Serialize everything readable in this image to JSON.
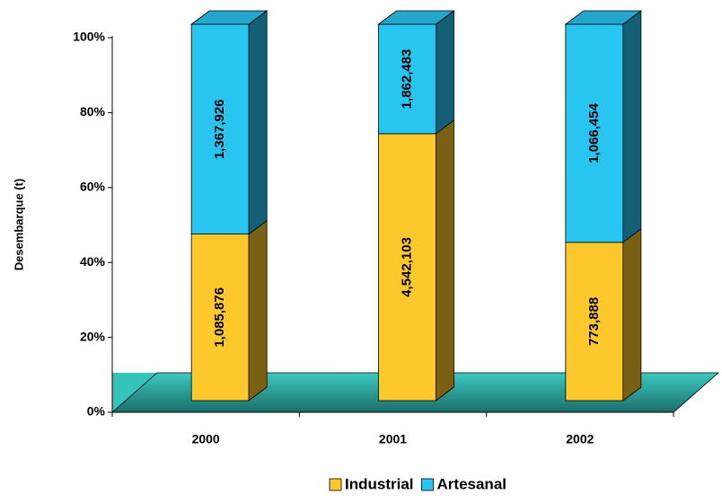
{
  "chart_data": {
    "type": "bar",
    "stacking": "percent",
    "three_d": true,
    "y_label": "Desembarque (t)",
    "categories": [
      "2000",
      "2001",
      "2002"
    ],
    "series": [
      {
        "name": "Industrial",
        "color": "#fdc82c",
        "values": [
          1085876,
          4542103,
          773888
        ],
        "value_labels": [
          "1,085,876",
          "4,542,103",
          "773,888"
        ]
      },
      {
        "name": "Artesanal",
        "color": "#29c5f1",
        "values": [
          1367926,
          1862483,
          1066454
        ],
        "value_labels": [
          "1,367,926",
          "1,862,483",
          "1,066,454"
        ]
      }
    ],
    "ylim": [
      0,
      100
    ],
    "yticks": [
      {
        "value": 0,
        "label": "0%"
      },
      {
        "value": 20,
        "label": "20%"
      },
      {
        "value": 40,
        "label": "40%"
      },
      {
        "value": 60,
        "label": "60%"
      },
      {
        "value": 80,
        "label": "80%"
      },
      {
        "value": 100,
        "label": "100%"
      }
    ],
    "legend": "bottom"
  }
}
